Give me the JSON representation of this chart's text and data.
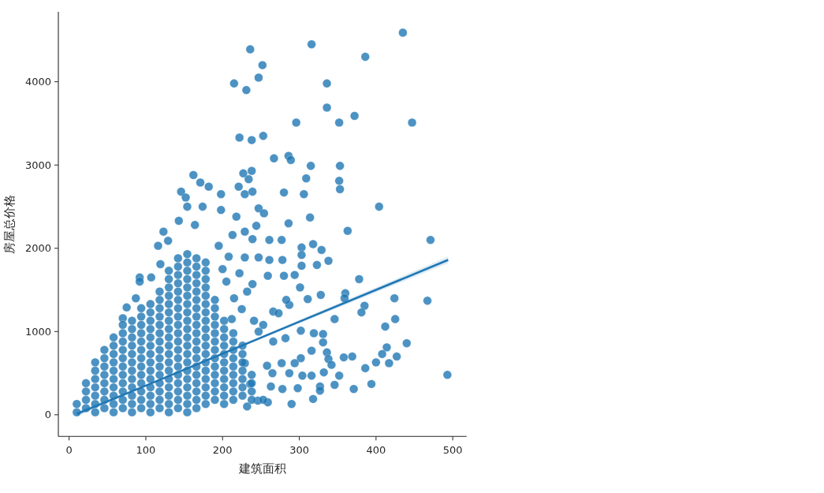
{
  "chart_data": {
    "type": "scatter",
    "xlabel": "建筑面积",
    "ylabel": "房屋总价格",
    "xlim": [
      -14,
      518
    ],
    "ylim": [
      -260,
      4840
    ],
    "xticks": [
      0,
      100,
      200,
      300,
      400,
      500
    ],
    "yticks": [
      0,
      1000,
      2000,
      3000,
      4000
    ],
    "series": [
      {
        "color": "#1f77b4",
        "marker": "circle",
        "x": [
          236,
          252,
          247,
          215,
          231,
          222,
          238,
          253,
          267,
          162,
          171,
          182,
          146,
          152,
          198,
          227,
          238,
          234,
          221,
          229,
          239,
          154,
          174,
          198,
          247,
          254,
          316,
          435,
          386,
          336,
          336,
          372,
          352,
          296,
          447,
          286,
          289,
          315,
          353,
          309,
          352,
          353,
          280,
          306,
          404,
          314,
          286,
          363,
          471,
          261,
          277,
          303,
          303,
          318,
          329,
          338,
          323,
          303,
          378,
          360,
          359,
          424,
          467,
          385,
          381,
          425,
          412,
          346,
          328,
          301,
          311,
          440,
          414,
          408,
          427,
          417,
          400,
          386,
          394,
          371,
          369,
          358,
          352,
          346,
          493,
          318,
          290,
          302,
          316,
          302,
          319,
          331,
          331,
          336,
          338,
          342,
          332,
          327,
          327,
          298,
          123,
          116,
          92,
          92,
          75,
          87,
          70,
          107,
          119,
          129,
          143,
          164,
          218,
          229,
          239,
          244,
          261,
          195,
          208,
          213,
          232,
          225,
          241,
          253,
          259,
          266,
          247,
          258,
          265,
          232,
          259,
          246,
          282,
          266,
          277,
          263,
          287,
          304,
          316,
          294,
          278,
          253,
          273,
          287,
          239,
          229,
          280,
          294,
          247,
          278,
          283,
          229,
          236,
          205,
          215,
          222,
          200,
          212,
          10,
          10,
          22,
          22,
          22,
          22,
          34,
          34,
          34,
          34,
          34,
          34,
          34,
          46,
          46,
          46,
          46,
          46,
          46,
          46,
          46,
          58,
          58,
          58,
          58,
          58,
          58,
          58,
          58,
          58,
          58,
          70,
          70,
          70,
          70,
          70,
          70,
          70,
          70,
          70,
          70,
          70,
          82,
          82,
          82,
          82,
          82,
          82,
          82,
          82,
          82,
          82,
          82,
          82,
          94,
          94,
          94,
          94,
          94,
          94,
          94,
          94,
          94,
          94,
          94,
          94,
          94,
          106,
          106,
          106,
          106,
          106,
          106,
          106,
          106,
          106,
          106,
          106,
          106,
          106,
          106,
          118,
          118,
          118,
          118,
          118,
          118,
          118,
          118,
          118,
          118,
          118,
          118,
          118,
          118,
          118,
          130,
          130,
          130,
          130,
          130,
          130,
          130,
          130,
          130,
          130,
          130,
          130,
          130,
          130,
          130,
          130,
          130,
          130,
          142,
          142,
          142,
          142,
          142,
          142,
          142,
          142,
          142,
          142,
          142,
          142,
          142,
          142,
          142,
          142,
          142,
          142,
          142,
          154,
          154,
          154,
          154,
          154,
          154,
          154,
          154,
          154,
          154,
          154,
          154,
          154,
          154,
          154,
          154,
          154,
          154,
          154,
          154,
          166,
          166,
          166,
          166,
          166,
          166,
          166,
          166,
          166,
          166,
          166,
          166,
          166,
          166,
          166,
          166,
          166,
          166,
          166,
          178,
          178,
          178,
          178,
          178,
          178,
          178,
          178,
          178,
          178,
          178,
          178,
          178,
          178,
          178,
          178,
          178,
          178,
          190,
          190,
          190,
          190,
          190,
          190,
          190,
          190,
          190,
          190,
          190,
          190,
          190,
          202,
          202,
          202,
          202,
          202,
          202,
          202,
          202,
          202,
          202,
          202,
          214,
          214,
          214,
          214,
          214,
          214,
          214,
          214,
          214,
          226,
          226,
          226,
          226,
          226,
          226,
          226,
          238,
          238,
          238,
          238
        ],
        "values": [
          4390,
          4200,
          4050,
          3980,
          3900,
          3330,
          3300,
          3350,
          3080,
          2880,
          2790,
          2740,
          2680,
          2610,
          2650,
          2900,
          2930,
          2830,
          2740,
          2650,
          2680,
          2500,
          2500,
          2460,
          2480,
          2420,
          4450,
          4590,
          4300,
          3980,
          3690,
          3590,
          3510,
          3510,
          3510,
          3110,
          3060,
          2990,
          2990,
          2840,
          2810,
          2710,
          2670,
          2650,
          2500,
          2370,
          2300,
          2210,
          2100,
          2100,
          2100,
          2010,
          1920,
          2050,
          1980,
          1850,
          1800,
          1790,
          1630,
          1460,
          1400,
          1400,
          1370,
          1310,
          1230,
          1150,
          1060,
          1150,
          1440,
          1530,
          1390,
          860,
          810,
          730,
          700,
          620,
          630,
          560,
          370,
          310,
          700,
          690,
          470,
          360,
          480,
          190,
          130,
          680,
          770,
          1010,
          980,
          970,
          870,
          750,
          670,
          600,
          510,
          340,
          290,
          320,
          2200,
          2030,
          1650,
          1600,
          1290,
          1400,
          1160,
          1650,
          1810,
          2090,
          2330,
          2280,
          2380,
          2200,
          2110,
          2270,
          1860,
          2030,
          1900,
          2160,
          1480,
          1270,
          1130,
          1080,
          1670,
          1240,
          1000,
          590,
          500,
          100,
          150,
          170,
          920,
          880,
          620,
          340,
          500,
          470,
          470,
          620,
          310,
          180,
          1220,
          1320,
          1570,
          1890,
          1670,
          1680,
          1890,
          1860,
          1380,
          620,
          370,
          1600,
          1400,
          1700,
          1750,
          1150,
          30,
          130,
          80,
          180,
          280,
          380,
          30,
          130,
          230,
          330,
          430,
          530,
          630,
          80,
          180,
          280,
          380,
          480,
          580,
          680,
          780,
          30,
          130,
          230,
          330,
          430,
          530,
          630,
          730,
          830,
          930,
          80,
          180,
          280,
          380,
          480,
          580,
          680,
          780,
          880,
          980,
          1080,
          30,
          130,
          230,
          330,
          430,
          530,
          630,
          730,
          830,
          930,
          1030,
          1130,
          80,
          180,
          280,
          380,
          480,
          580,
          680,
          780,
          880,
          980,
          1080,
          1180,
          1280,
          30,
          130,
          230,
          330,
          430,
          530,
          630,
          730,
          830,
          930,
          1030,
          1130,
          1230,
          1330,
          80,
          180,
          280,
          380,
          480,
          580,
          680,
          780,
          880,
          980,
          1080,
          1180,
          1280,
          1380,
          1480,
          30,
          130,
          230,
          330,
          430,
          530,
          630,
          730,
          830,
          930,
          1030,
          1130,
          1230,
          1330,
          1430,
          1530,
          1630,
          1730,
          80,
          180,
          280,
          380,
          480,
          580,
          680,
          780,
          880,
          980,
          1080,
          1180,
          1280,
          1380,
          1480,
          1580,
          1680,
          1780,
          1880,
          30,
          130,
          230,
          330,
          430,
          530,
          630,
          730,
          830,
          930,
          1030,
          1130,
          1230,
          1330,
          1430,
          1530,
          1630,
          1730,
          1830,
          1930,
          80,
          180,
          280,
          380,
          480,
          580,
          680,
          780,
          880,
          980,
          1080,
          1180,
          1280,
          1380,
          1480,
          1580,
          1680,
          1780,
          1880,
          130,
          230,
          330,
          430,
          530,
          630,
          730,
          830,
          930,
          1030,
          1130,
          1230,
          1330,
          1430,
          1530,
          1630,
          1730,
          1830,
          180,
          280,
          380,
          480,
          580,
          680,
          780,
          880,
          980,
          1080,
          1180,
          1280,
          1380,
          130,
          230,
          330,
          430,
          530,
          630,
          730,
          830,
          930,
          1030,
          1130,
          180,
          280,
          380,
          480,
          580,
          680,
          780,
          880,
          980,
          230,
          330,
          430,
          530,
          630,
          730,
          830,
          180,
          280,
          380,
          480
        ]
      },
      {
        "type": "line",
        "color": "#1f77b4",
        "x": [
          10,
          100,
          290,
          400,
          494
        ],
        "values": [
          10,
          350,
          1080,
          1500,
          1860
        ],
        "lower": [
          -20,
          340,
          1060,
          1470,
          1820
        ],
        "upper": [
          40,
          360,
          1100,
          1530,
          1900
        ]
      }
    ]
  }
}
